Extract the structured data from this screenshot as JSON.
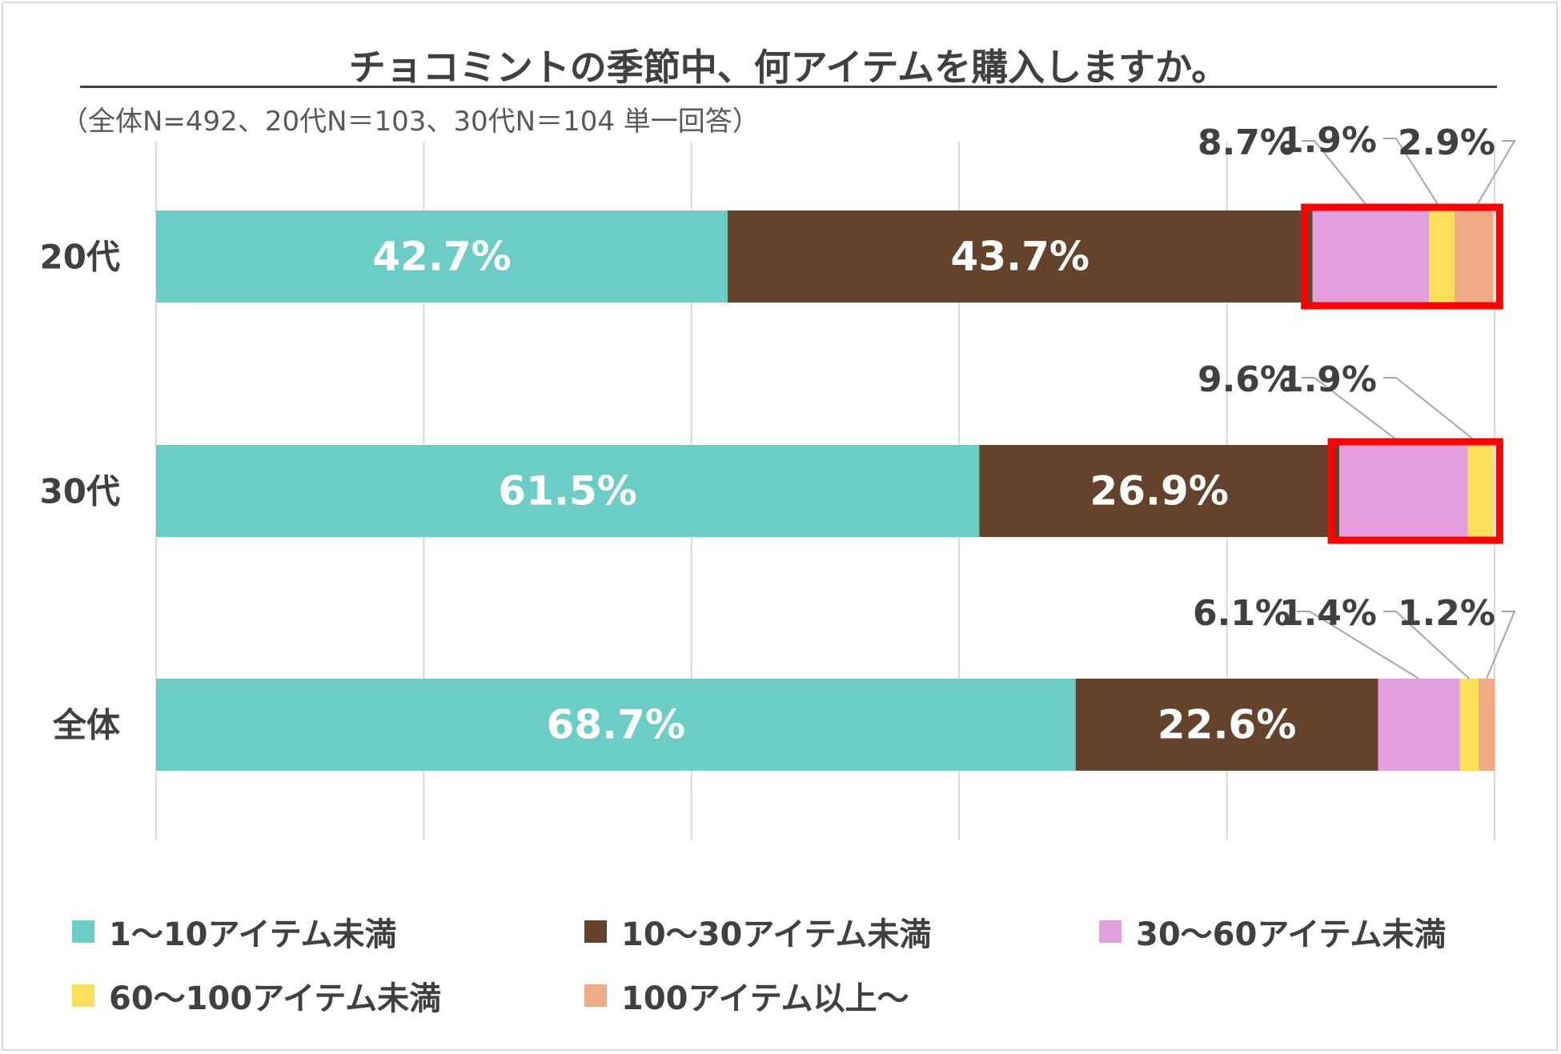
{
  "chart_data": {
    "type": "bar",
    "orientation": "horizontal",
    "stacked": true,
    "title": "チョコミントの季節中、何アイテムを購入しますか。",
    "subtitle": "（全体N=492、20代N＝103、30代N＝104 単一回答）",
    "categories": [
      "20代",
      "30代",
      "全体"
    ],
    "series": [
      {
        "name": "1～10アイテム未満",
        "color": "#6ccdc7",
        "values": [
          42.7,
          61.5,
          68.7
        ],
        "labels": [
          "42.7%",
          "61.5%",
          "68.7%"
        ]
      },
      {
        "name": "10～30アイテム未満",
        "color": "#65432b",
        "values": [
          43.7,
          26.9,
          22.6
        ],
        "labels": [
          "43.7%",
          "26.9%",
          "22.6%"
        ]
      },
      {
        "name": "30～60アイテム未満",
        "color": "#e39fdd",
        "values": [
          8.7,
          9.6,
          6.1
        ],
        "labels": [
          "8.7%",
          "9.6%",
          "6.1%"
        ]
      },
      {
        "name": "60～100アイテム未満",
        "color": "#fde05a",
        "values": [
          1.9,
          1.9,
          1.4
        ],
        "labels": [
          "1.9%",
          "1.9%",
          "1.4%"
        ]
      },
      {
        "name": "100アイテム以上～",
        "color": "#f0aa86",
        "values": [
          2.9,
          0,
          1.2
        ],
        "labels": [
          "2.9%",
          "",
          "1.2%"
        ]
      }
    ],
    "xlim": [
      0,
      100
    ],
    "grid": true,
    "legend_position": "bottom",
    "highlight_color": "#ff0000",
    "highlight": "red box around small segments for 20代 and 30代"
  }
}
